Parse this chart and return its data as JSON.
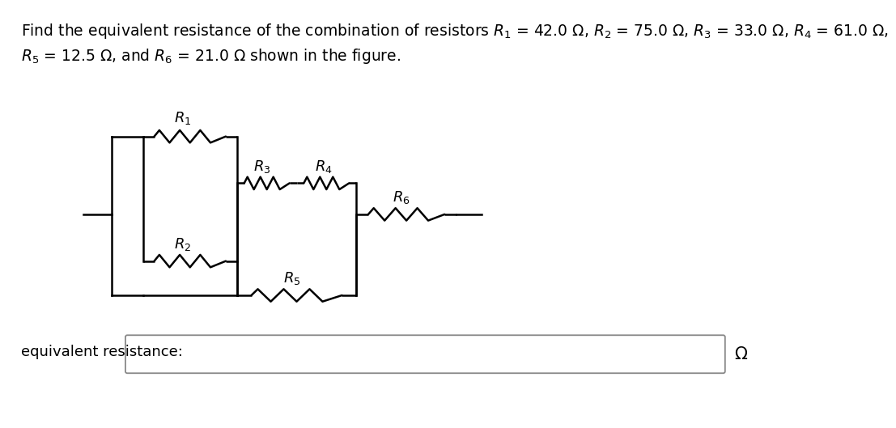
{
  "title_line1": "Find the equivalent resistance of the combination of resistors $R_1$ = 42.0 Ω, $R_2$ = 75.0 Ω, $R_3$ = 33.0 Ω, $R_4$ = 61.0 Ω,",
  "title_line2": "$R_5$ = 12.5 Ω, and $R_6$ = 21.0 Ω shown in the figure.",
  "eq_label": "equivalent resistance:",
  "omega": "Ω",
  "bg_color": "#ffffff",
  "line_color": "#000000",
  "resistor_labels": [
    "$R_1$",
    "$R_2$",
    "$R_3$",
    "$R_4$",
    "$R_5$",
    "$R_6$"
  ],
  "font_size_title": 13.5,
  "font_size_label": 13,
  "font_size_eq": 13
}
